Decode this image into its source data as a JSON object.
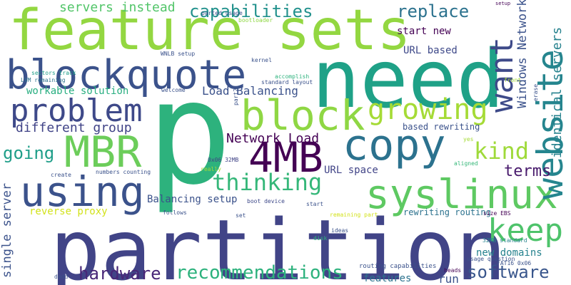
{
  "words": [
    "feature sets",
    "need",
    "p",
    "partition",
    "blockquote",
    "copy",
    "block",
    "syslinux",
    "using",
    "MBR",
    "website",
    "4MB",
    "problem",
    "want",
    "growing",
    "keep",
    "thinking",
    "recommendations",
    "capabilities",
    "servers instead",
    "replace",
    "hardware",
    "software",
    "kind",
    "terms",
    "going",
    "different group",
    "Network Load",
    "Load Balancing",
    "workable solution",
    "Windows Network",
    "identical servers",
    "single server",
    "start new",
    "URL based",
    "URL space",
    "Balancing setup",
    "reverse proxy",
    "new domains",
    "run",
    "features",
    "rewriting routing",
    "based rewriting",
    "routing capabilities",
    "remaining part",
    "boot device",
    "0x06 32MB",
    "32MB standard",
    "FAT16 0x06",
    "usage question",
    "size EBS",
    "heads",
    "setup",
    "parted usage",
    "bootloader",
    "sectors track",
    "LVM remaining",
    "WNLB setup",
    "kernel",
    "accomplish",
    "welcome",
    "part2",
    "standard layout",
    "front",
    "erase",
    "yes",
    "aligned",
    "create",
    "numbers counting",
    "really",
    "follows",
    "set",
    "start",
    "ideas",
    "disk",
    "dodd"
  ]
}
